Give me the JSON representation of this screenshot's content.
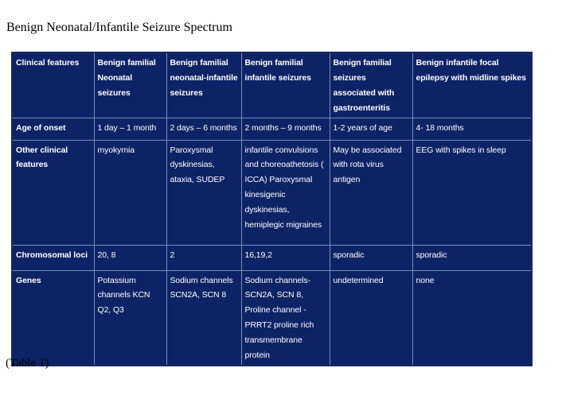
{
  "title": "Benign Neonatal/Infantile Seizure Spectrum",
  "caption": "(Table 1)",
  "colors": {
    "cell_background": "#0d2365",
    "grid_line": "#7e8cbb",
    "outer_border": "#152a60",
    "cell_text": "#ffffff",
    "page_text": "#000000"
  },
  "table": {
    "columns": [
      "Clinical features",
      "Benign familial Neonatal seizures",
      "Benign familial neonatal-infantile seizures",
      "Benign familial infantile seizures",
      "Benign familial seizures associated with gastroenteritis",
      "Benign infantile focal epilepsy with midline spikes"
    ],
    "rows": [
      {
        "label": "Age of onset",
        "cells": [
          "1 day – 1 month",
          "2 days – 6 months",
          "2 months – 9 months",
          "1-2 years of age",
          "4- 18 months"
        ]
      },
      {
        "label": "Other clinical features",
        "cells": [
          "myokymia",
          "Paroxysmal dyskinesias, ataxia, SUDEP",
          "infantile convulsions and choreoathetosis ( ICCA) Paroxysmal kinesigenic dyskinesias, hemiplegic migraines",
          "May be associated with rota virus antigen",
          "EEG with spikes in sleep"
        ]
      },
      {
        "label": "Chromosomal loci",
        "cells": [
          "20, 8",
          "2",
          "16,19,2",
          "sporadic",
          "sporadic"
        ]
      },
      {
        "label": "Genes",
        "cells": [
          "Potassium channels KCN Q2, Q3",
          "Sodium channels SCN2A, SCN 8",
          "Sodium channels- SCN2A, SCN 8,\nProline channel - PRRT2 proline rich transmembrane protein",
          "undetermined",
          "none"
        ]
      }
    ]
  }
}
